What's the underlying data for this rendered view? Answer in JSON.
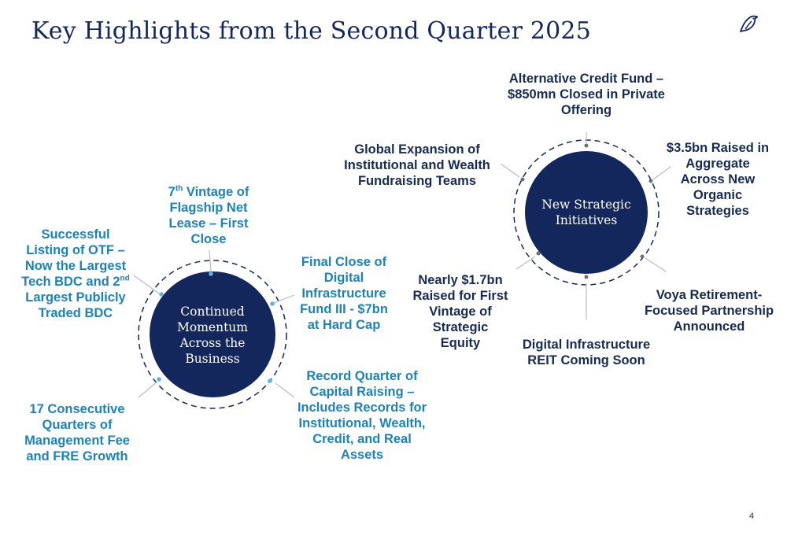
{
  "title": "Key Highlights from the Second Quarter 2025",
  "logo": {
    "icon": "bird-logo-icon"
  },
  "page_number": "4",
  "colors": {
    "navy": "#13275c",
    "blue": "#1e82b8",
    "dark": "#172a52"
  },
  "left_cluster": {
    "center": [
      "Continued",
      "Momentum",
      "Across the",
      "Business"
    ],
    "items": {
      "vintage": {
        "l1a": "7",
        "l1sup": "th",
        "l1b": " Vintage of",
        "l2": "Flagship Net",
        "l3": "Lease – First",
        "l4": "Close"
      },
      "otf": {
        "l1": "Successful",
        "l2": "Listing of OTF –",
        "l3": "Now the Largest",
        "l4a": "Tech BDC and 2",
        "l4sup": "nd",
        "l5": "Largest Publicly",
        "l6": "Traded BDC"
      },
      "digital_fund": {
        "l1": "Final Close of",
        "l2": "Digital",
        "l3": "Infrastructure",
        "l4": "Fund III - $7bn",
        "l5": "at Hard Cap"
      },
      "record_quarter": {
        "l1": "Record Quarter of",
        "l2": "Capital Raising –",
        "l3": "Includes Records for",
        "l4": "Institutional, Wealth,",
        "l5": "Credit, and Real",
        "l6": "Assets"
      },
      "consecutive": {
        "l1": "17 Consecutive",
        "l2": "Quarters of",
        "l3": "Management Fee",
        "l4": "and FRE Growth"
      }
    }
  },
  "right_cluster": {
    "center": [
      "New Strategic",
      "Initiatives"
    ],
    "items": {
      "alt_credit": {
        "l1": "Alternative Credit Fund –",
        "l2": "$850mn Closed in Private",
        "l3": "Offering"
      },
      "global_expansion": {
        "l1": "Global Expansion of",
        "l2": "Institutional and Wealth",
        "l3": "Fundraising Teams"
      },
      "raised_35": {
        "l1": "$3.5bn Raised in",
        "l2": "Aggregate",
        "l3": "Across New",
        "l4": "Organic",
        "l5": "Strategies"
      },
      "nearly_17": {
        "l1": "Nearly $1.7bn",
        "l2": "Raised for First",
        "l3": "Vintage of",
        "l4": "Strategic",
        "l5": "Equity"
      },
      "voya": {
        "l1": "Voya Retirement-",
        "l2": "Focused Partnership",
        "l3": "Announced"
      },
      "digital_reit": {
        "l1": "Digital Infrastructure",
        "l2": "REIT Coming Soon"
      }
    }
  }
}
